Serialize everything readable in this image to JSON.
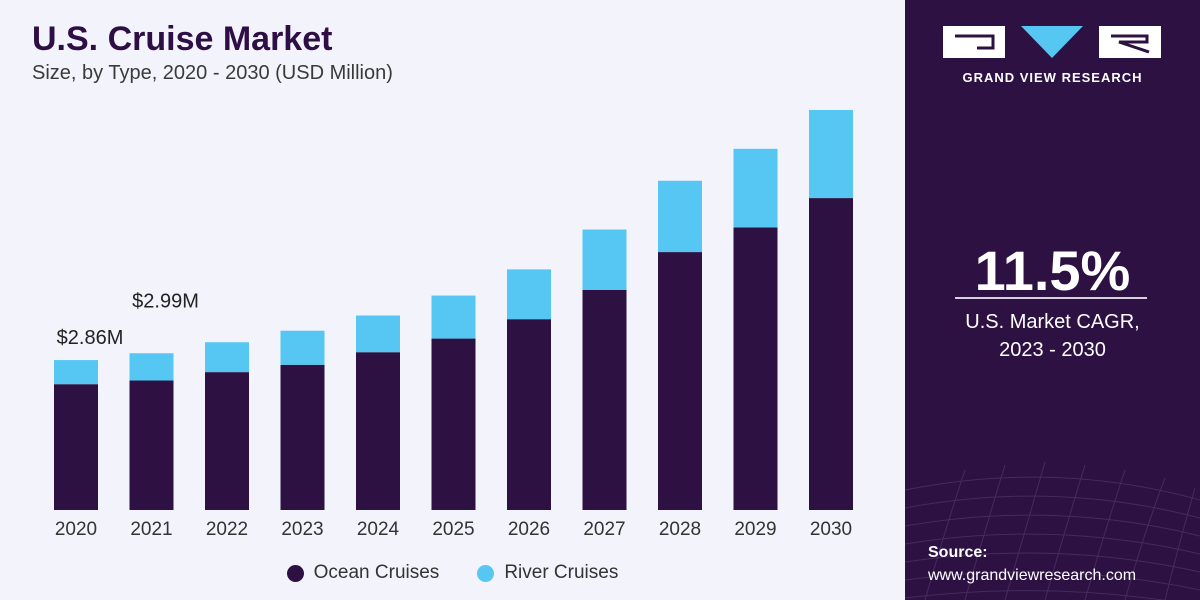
{
  "header": {
    "title": "U.S. Cruise Market",
    "subtitle": "Size, by Type, 2020 - 2030 (USD Million)"
  },
  "colors": {
    "ocean": "#2d1143",
    "river": "#56c7f2",
    "panel": "#2d1143",
    "background": "#f2f3fb"
  },
  "chart_data": {
    "type": "bar",
    "stacked": true,
    "categories": [
      "2020",
      "2021",
      "2022",
      "2023",
      "2024",
      "2025",
      "2026",
      "2027",
      "2028",
      "2029",
      "2030"
    ],
    "series": [
      {
        "name": "Ocean Cruises",
        "values": [
          2.4,
          2.47,
          2.63,
          2.77,
          3.01,
          3.27,
          3.64,
          4.2,
          4.92,
          5.39,
          5.95
        ]
      },
      {
        "name": "River Cruises",
        "values": [
          0.46,
          0.52,
          0.57,
          0.65,
          0.7,
          0.82,
          0.95,
          1.15,
          1.36,
          1.5,
          1.68
        ]
      }
    ],
    "annotations": [
      {
        "category": "2020",
        "text": "$2.86M"
      },
      {
        "category": "2021",
        "text": "$2.99M"
      }
    ],
    "ylim": [
      0,
      7.63
    ],
    "grid": false,
    "legend": "bottom-center"
  },
  "legend": {
    "ocean_label": "Ocean Cruises",
    "river_label": "River Cruises"
  },
  "sidebar": {
    "brand": "GRAND VIEW RESEARCH",
    "cagr_value": "11.5%",
    "cagr_label_line1": "U.S. Market CAGR,",
    "cagr_label_line2": "2023 - 2030",
    "source_title": "Source:",
    "source_url": "www.grandviewresearch.com"
  }
}
